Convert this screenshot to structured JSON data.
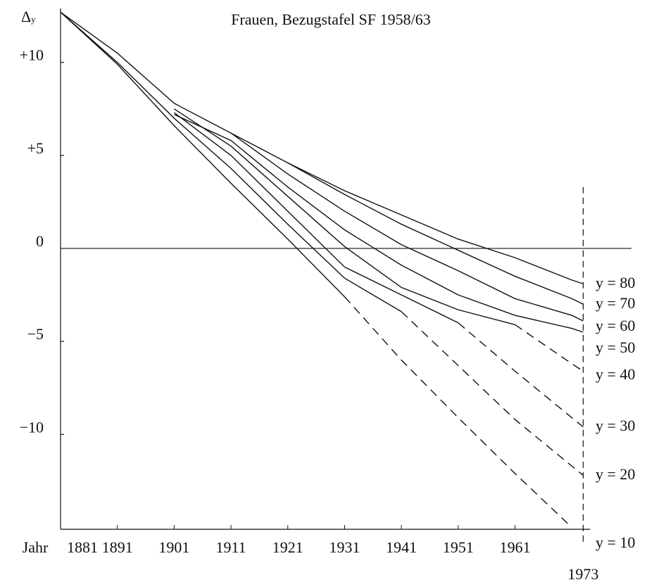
{
  "chart_data": {
    "type": "line",
    "title": "Frauen, Bezugstafel SF 1958/63",
    "y_label": {
      "symbol": "Δ",
      "subscript": "y"
    },
    "x_label": "Jahr",
    "x": [
      1881,
      1891,
      1901,
      1911,
      1921,
      1931,
      1941,
      1951,
      1961,
      1971,
      1973
    ],
    "xlim": [
      1881,
      1981.5
    ],
    "ylim": [
      -15.1,
      12.9
    ],
    "xticks": [
      1881,
      1891,
      1901,
      1911,
      1921,
      1931,
      1941,
      1951,
      1961,
      1973
    ],
    "yticks": [
      {
        "value": 10,
        "label": "+10"
      },
      {
        "value": 5,
        "label": "+5"
      },
      0,
      {
        "value": -5,
        "label": "−5"
      },
      {
        "value": -10,
        "label": "−10"
      }
    ],
    "reference_line": {
      "x": 1973,
      "top": 3.3
    },
    "color": "#111111",
    "series": [
      {
        "name": "y = 80",
        "values": [
          12.7,
          10.5,
          7.8,
          6.2,
          4.6,
          3.1,
          1.8,
          0.5,
          -0.5,
          -1.7,
          -1.9
        ],
        "projected_values": [
          null,
          null,
          null,
          null,
          null,
          null,
          null,
          null,
          null,
          null,
          null
        ]
      },
      {
        "name": "y = 70",
        "values": [
          null,
          null,
          null,
          null,
          4.6,
          2.9,
          1.3,
          -0.1,
          -1.5,
          -2.7,
          -3.0
        ],
        "projected_values": [
          null,
          null,
          null,
          null,
          null,
          null,
          null,
          null,
          null,
          null,
          null
        ]
      },
      {
        "name": "y = 60",
        "values": [
          null,
          null,
          null,
          6.2,
          4.0,
          2.0,
          0.2,
          -1.2,
          -2.7,
          -3.6,
          -3.9
        ],
        "projected_values": [
          null,
          null,
          null,
          null,
          null,
          null,
          null,
          null,
          null,
          null,
          null
        ]
      },
      {
        "name": "y = 50",
        "values": [
          null,
          null,
          7.2,
          5.8,
          3.3,
          1.0,
          -0.9,
          -2.5,
          -3.6,
          -4.3,
          -4.5
        ],
        "projected_values": [
          null,
          null,
          null,
          null,
          null,
          null,
          null,
          null,
          null,
          null,
          null
        ]
      },
      {
        "name": "y = 40",
        "values": [
          null,
          null,
          7.5,
          5.5,
          2.8,
          0.1,
          -2.1,
          -3.3,
          -4.1,
          null,
          null
        ],
        "projected_values": [
          null,
          null,
          null,
          null,
          null,
          null,
          null,
          null,
          -4.1,
          -6.2,
          -6.6
        ]
      },
      {
        "name": "y = 30",
        "values": [
          null,
          null,
          7.3,
          5.0,
          2.0,
          -1.0,
          -2.5,
          -4.0,
          null,
          null,
          null
        ],
        "projected_values": [
          null,
          null,
          null,
          null,
          null,
          null,
          null,
          -4.0,
          -6.6,
          -9.1,
          -9.6
        ]
      },
      {
        "name": "y = 20",
        "values": [
          12.7,
          10.0,
          7.0,
          4.3,
          1.3,
          -1.6,
          -3.4,
          null,
          null,
          null,
          null
        ],
        "projected_values": [
          null,
          null,
          null,
          null,
          null,
          null,
          -3.4,
          -6.3,
          -9.2,
          -11.7,
          -12.2
        ]
      },
      {
        "name": "y = 10",
        "values": [
          12.7,
          9.9,
          6.6,
          3.5,
          0.5,
          -2.6,
          null,
          null,
          null,
          null,
          null
        ],
        "projected_values": [
          null,
          null,
          null,
          null,
          null,
          -2.6,
          -6.0,
          -9.1,
          -12.1,
          -15.0,
          null
        ]
      }
    ]
  }
}
